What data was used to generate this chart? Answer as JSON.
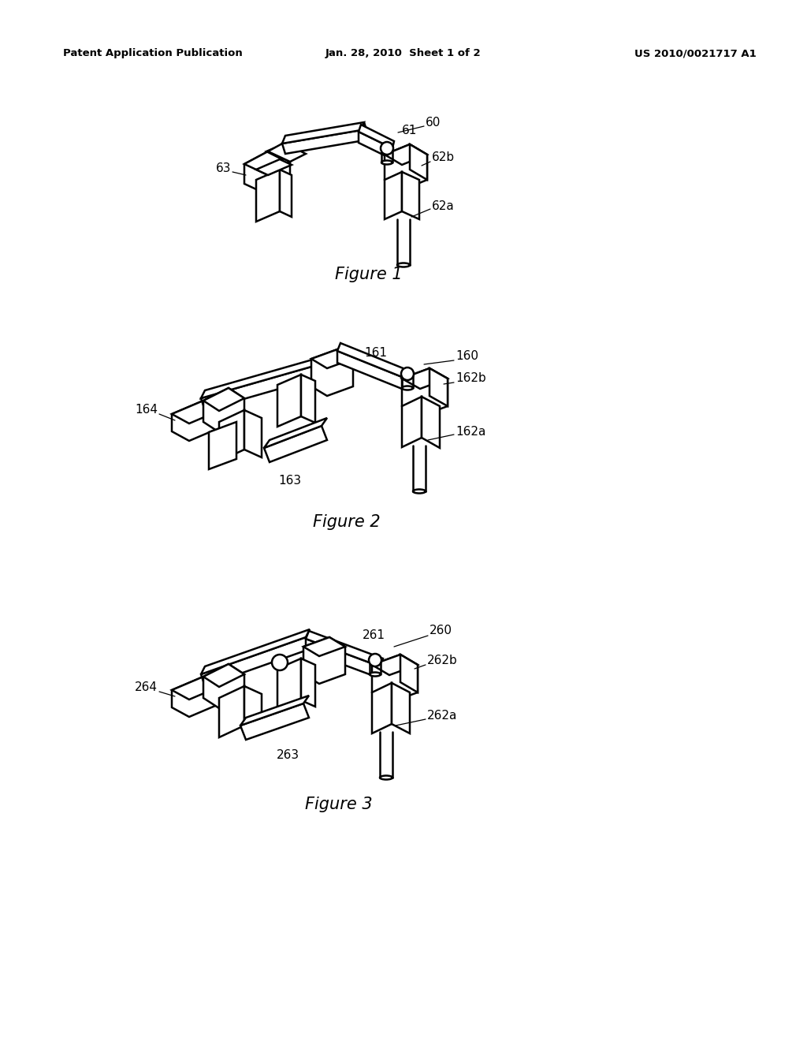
{
  "background_color": "#ffffff",
  "header_left": "Patent Application Publication",
  "header_center": "Jan. 28, 2010  Sheet 1 of 2",
  "header_right": "US 2010/0021717 A1",
  "label_fontsize": 11,
  "caption_fontsize": 15
}
